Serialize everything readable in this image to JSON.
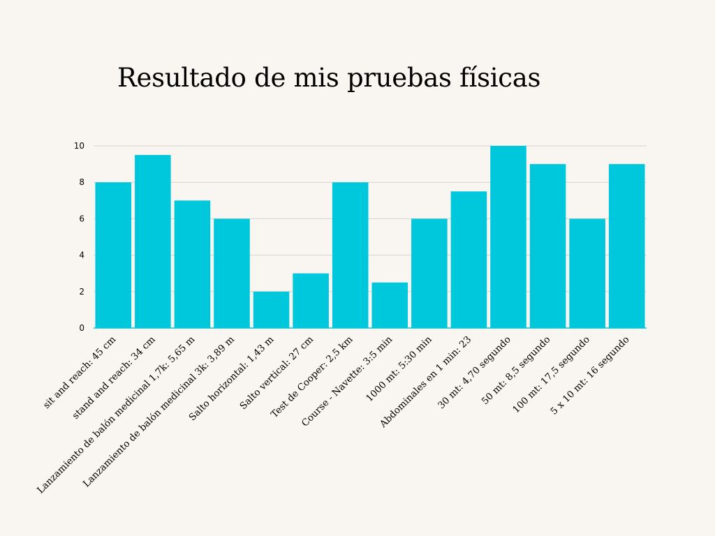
{
  "page": {
    "background": "#f9f6f2"
  },
  "chart_data": {
    "type": "bar",
    "title": "Resultado de mis pruebas físicas",
    "xlabel": "",
    "ylabel": "",
    "ylim": [
      0,
      10
    ],
    "yticks": [
      0,
      2,
      4,
      6,
      8,
      10
    ],
    "grid": true,
    "legend": "none",
    "bar_color": "#00c8dc",
    "categories": [
      "sit and reach: 45 cm",
      "stand and reach: 34 cm",
      "Lanzamiento de balón medicinal 1,7k: 5,65 m",
      "Lanzamiento de balón medicinal 3k: 3,89 m",
      "Salto horizontal: 1,43 m",
      "Salto vertical: 27 cm",
      "Test de Cooper: 2,5 km",
      "Course - Navette: 3:5 min",
      "1000 mt: 5:30 min",
      "Abdominales en 1 min: 23",
      "30 mt: 4,70 segundo",
      "50 mt: 8,5 segundo",
      "100 mt: 17,5 segundo",
      "5 x 10 mt: 16 segundo"
    ],
    "values": [
      8,
      9.5,
      7,
      6,
      2,
      3,
      8,
      2.5,
      6,
      7.5,
      10,
      9,
      6,
      9
    ]
  }
}
